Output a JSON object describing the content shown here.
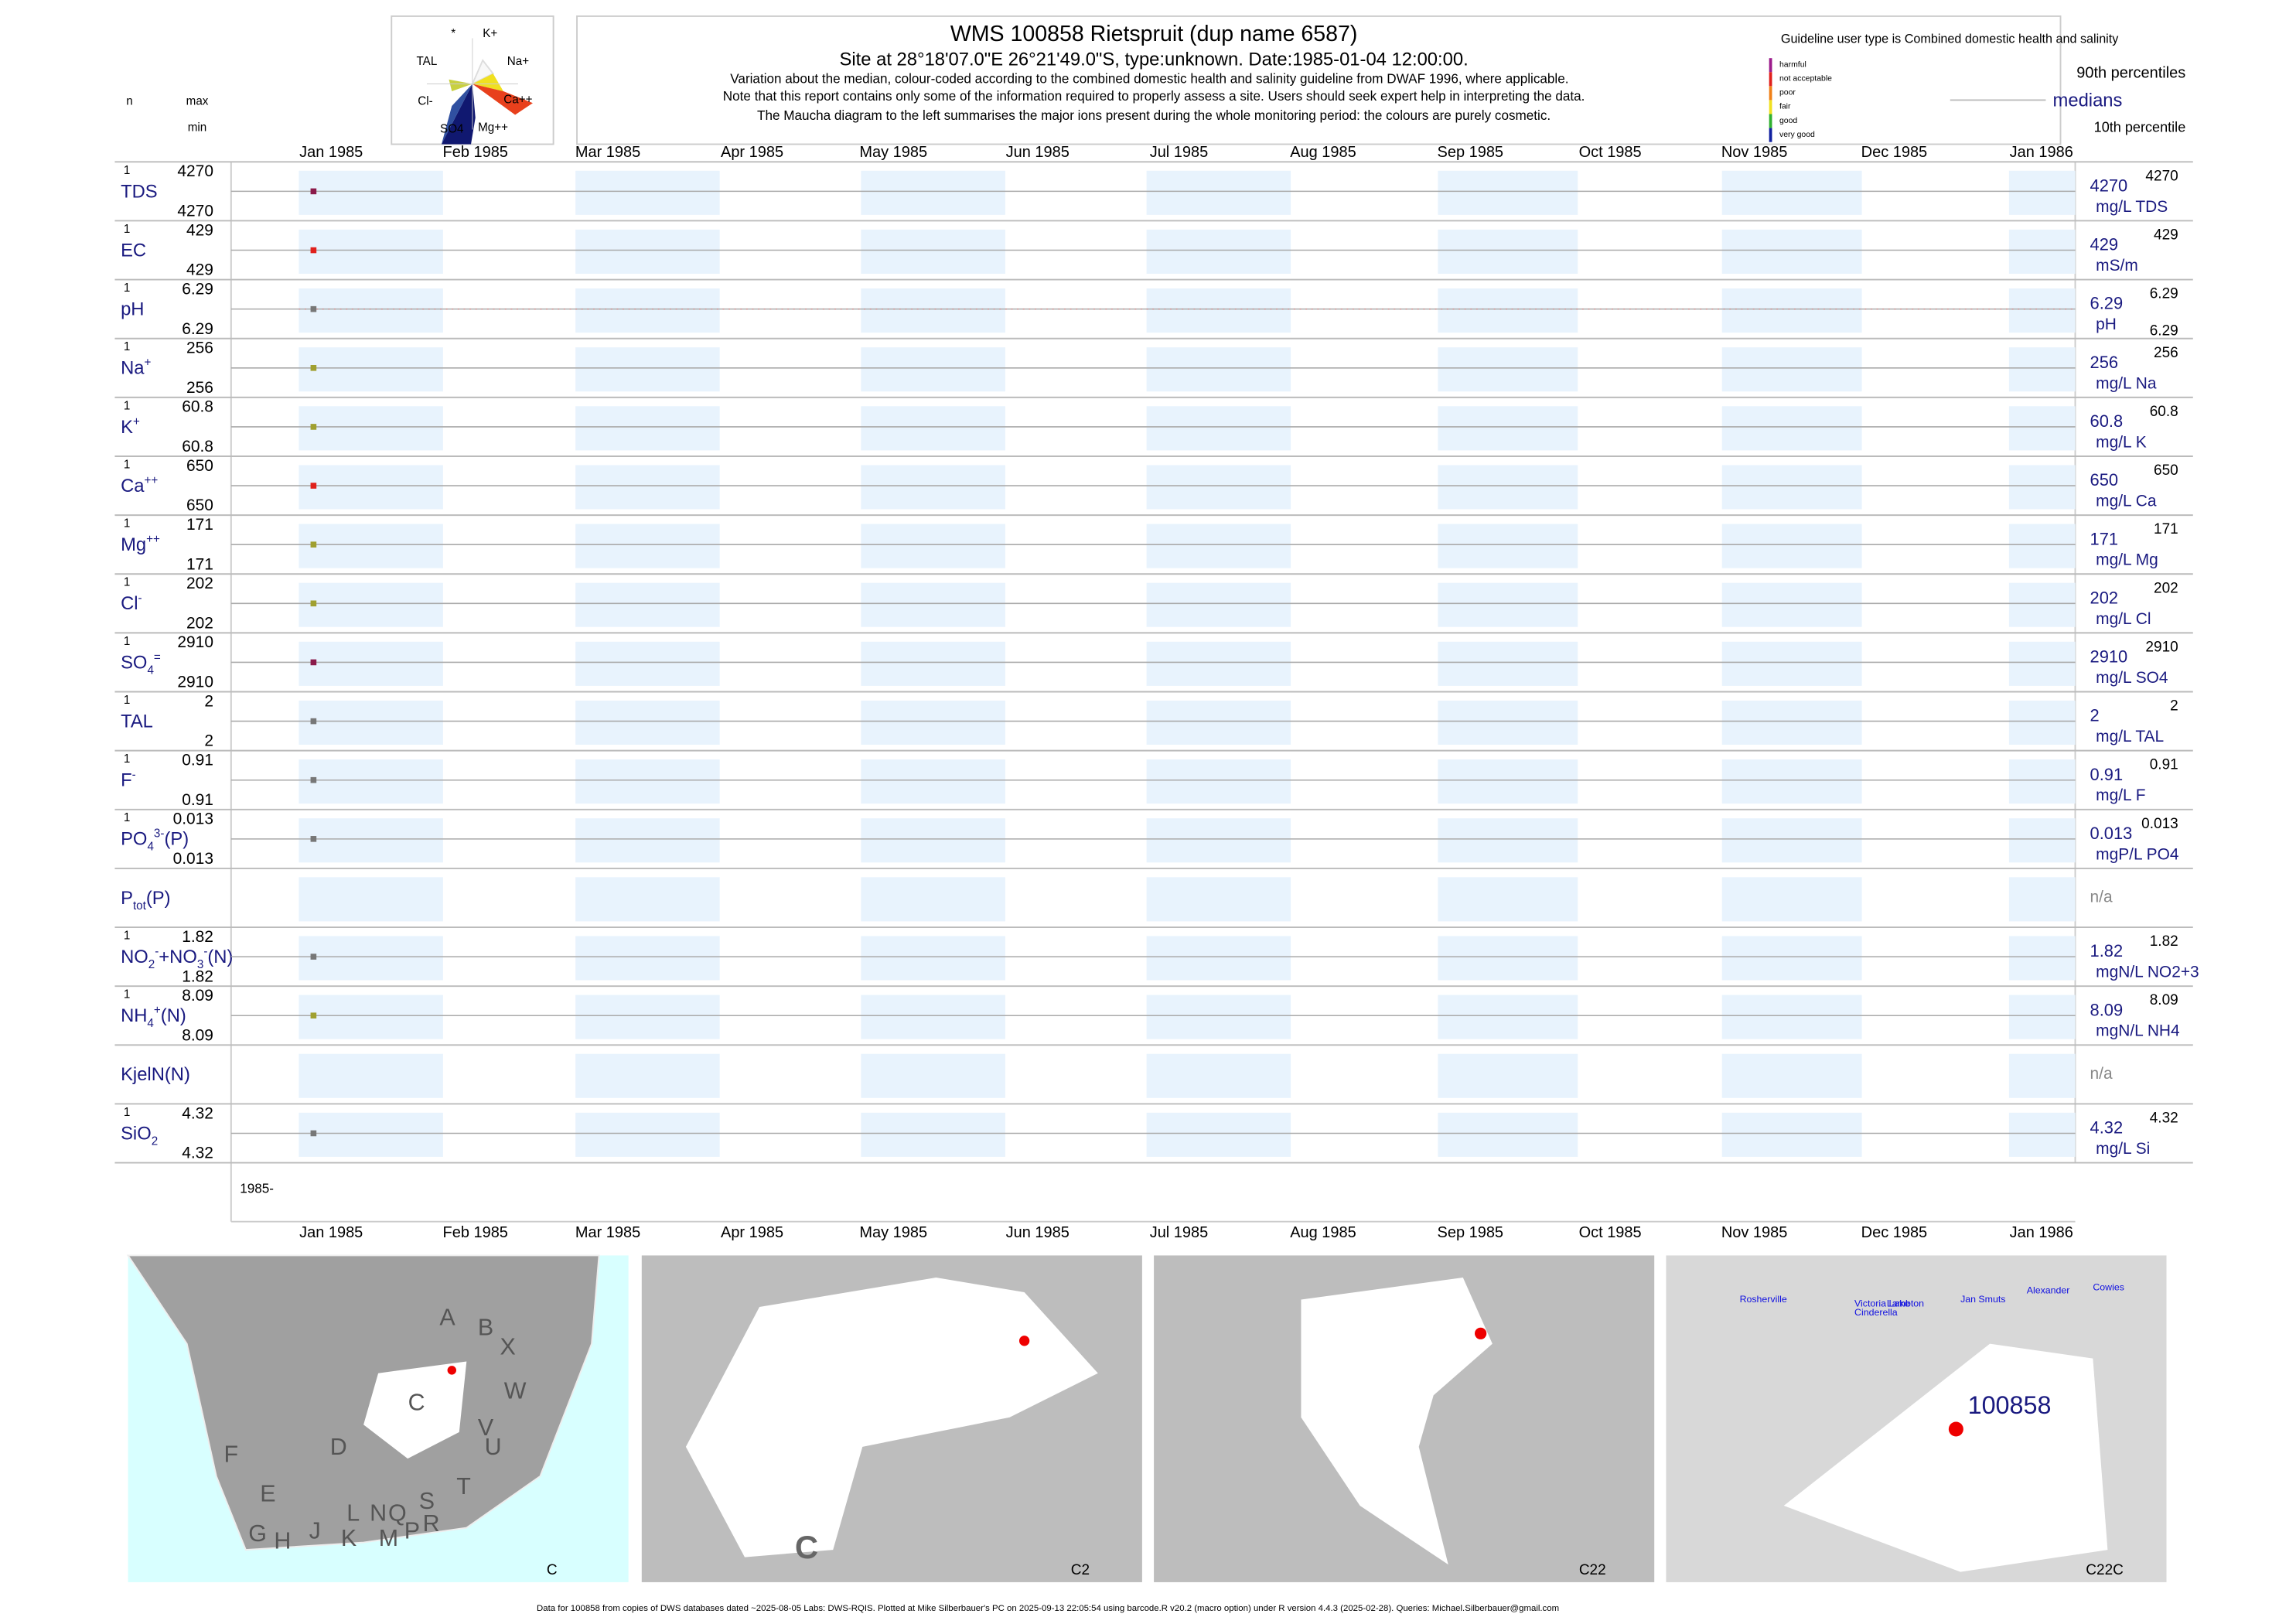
{
  "header": {
    "title": "WMS 100858  Rietspruit (dup name 6587)",
    "subtitle": "Site at 28°18'07.0\"E 26°21'49.0\"S, type:unknown. Date:1985-01-04 12:00:00.",
    "notes": [
      "Variation about the median,  colour-coded according to the combined domestic health and salinity guideline from DWAF 1996, where applicable.",
      "Note that this report contains only some of the information required to properly assess a site. Users should seek expert help in interpreting the data.",
      "The Maucha diagram to the left summarises the major ions present during the whole monitoring period: the colours are purely cosmetic."
    ]
  },
  "maucha": {
    "labels": [
      "*",
      "K+",
      "TAL",
      "Na+",
      "Cl-",
      "Ca++",
      "SO4",
      "Mg++"
    ]
  },
  "legend": {
    "title": "Guideline user type is Combined domestic health and salinity",
    "classes": [
      {
        "name": "harmful",
        "color": "#9c1c8c"
      },
      {
        "name": "not acceptable",
        "color": "#e0201c"
      },
      {
        "name": "poor",
        "color": "#f08018"
      },
      {
        "name": "fair",
        "color": "#f0e020"
      },
      {
        "name": "good",
        "color": "#30b030"
      },
      {
        "name": "very good",
        "color": "#1020a0"
      }
    ],
    "upper": "90th percentiles",
    "middle": "medians",
    "lower": "10th percentile"
  },
  "columns": {
    "n": "n",
    "max": "max",
    "min": "min"
  },
  "months": [
    "Jan 1985",
    "Feb 1985",
    "Mar 1985",
    "Apr 1985",
    "May 1985",
    "Jun 1985",
    "Jul 1985",
    "Aug 1985",
    "Sep 1985",
    "Oct 1985",
    "Nov 1985",
    "Dec 1985",
    "Jan 1986"
  ],
  "year_label": "1985-",
  "rows": [
    {
      "label": [
        {
          "t": "TDS"
        }
      ],
      "n": 1,
      "max": 4270,
      "min": 4270,
      "median": 4270,
      "p90": 4270,
      "unit": "mg/L TDS",
      "color": "#8b1a4a"
    },
    {
      "label": [
        {
          "t": "EC"
        }
      ],
      "n": 1,
      "max": 429,
      "min": 429,
      "median": 429,
      "p90": 429,
      "unit": "mS/m",
      "color": "#e0201c"
    },
    {
      "label": [
        {
          "t": "pH"
        }
      ],
      "n": 1,
      "max": 6.29,
      "min": 6.29,
      "median": 6.29,
      "p90": 6.29,
      "p10": 6.29,
      "unit": "pH",
      "color": "#777777"
    },
    {
      "label": [
        {
          "t": "Na"
        },
        {
          "t": "+",
          "pos": "sup"
        }
      ],
      "n": 1,
      "max": 256,
      "min": 256,
      "median": 256,
      "p90": 256,
      "unit": "mg/L Na",
      "color": "#a0a030"
    },
    {
      "label": [
        {
          "t": "K"
        },
        {
          "t": "+",
          "pos": "sup"
        }
      ],
      "n": 1,
      "max": 60.8,
      "min": 60.8,
      "median": 60.8,
      "p90": 60.8,
      "unit": "mg/L K",
      "color": "#a0a030"
    },
    {
      "label": [
        {
          "t": "Ca"
        },
        {
          "t": "++",
          "pos": "sup"
        }
      ],
      "n": 1,
      "max": 650,
      "min": 650,
      "median": 650,
      "p90": 650,
      "unit": "mg/L Ca",
      "color": "#e0201c"
    },
    {
      "label": [
        {
          "t": "Mg"
        },
        {
          "t": "++",
          "pos": "sup"
        }
      ],
      "n": 1,
      "max": 171,
      "min": 171,
      "median": 171,
      "p90": 171,
      "unit": "mg/L Mg",
      "color": "#a0a030"
    },
    {
      "label": [
        {
          "t": "Cl"
        },
        {
          "t": "-",
          "pos": "sup"
        }
      ],
      "n": 1,
      "max": 202,
      "min": 202,
      "median": 202,
      "p90": 202,
      "unit": "mg/L Cl",
      "color": "#a0a030"
    },
    {
      "label": [
        {
          "t": "SO"
        },
        {
          "t": "4",
          "pos": "sub"
        },
        {
          "t": "=",
          "pos": "sup"
        }
      ],
      "n": 1,
      "max": 2910,
      "min": 2910,
      "median": 2910,
      "p90": 2910,
      "unit": "mg/L SO4",
      "color": "#8b1a4a"
    },
    {
      "label": [
        {
          "t": "TAL"
        }
      ],
      "n": 1,
      "max": 2,
      "min": 2,
      "median": 2,
      "p90": 2,
      "unit": "mg/L TAL",
      "color": "#777777"
    },
    {
      "label": [
        {
          "t": "F"
        },
        {
          "t": "-",
          "pos": "sup"
        }
      ],
      "n": 1,
      "max": 0.91,
      "min": 0.91,
      "median": 0.91,
      "p90": 0.91,
      "unit": "mg/L F",
      "color": "#777777"
    },
    {
      "label": [
        {
          "t": "PO"
        },
        {
          "t": "4",
          "pos": "sub"
        },
        {
          "t": "3-",
          "pos": "sup"
        },
        {
          "t": "(P)"
        }
      ],
      "n": 1,
      "max": 0.013,
      "min": 0.013,
      "median": 0.013,
      "p90": 0.013,
      "unit": "mgP/L PO4",
      "color": "#777777"
    },
    {
      "label": [
        {
          "t": "P"
        },
        {
          "t": "tot",
          "pos": "sub"
        },
        {
          "t": "(P)"
        }
      ],
      "status": "n/a"
    },
    {
      "label": [
        {
          "t": "NO"
        },
        {
          "t": "2",
          "pos": "sub"
        },
        {
          "t": "-",
          "pos": "sup"
        },
        {
          "t": "+NO"
        },
        {
          "t": "3",
          "pos": "sub"
        },
        {
          "t": "-",
          "pos": "sup"
        },
        {
          "t": "(N)"
        }
      ],
      "n": 1,
      "max": 1.82,
      "min": 1.82,
      "median": 1.82,
      "p90": 1.82,
      "unit": "mgN/L NO2+3",
      "color": "#777777"
    },
    {
      "label": [
        {
          "t": "NH"
        },
        {
          "t": "4",
          "pos": "sub"
        },
        {
          "t": "+",
          "pos": "sup"
        },
        {
          "t": "(N)"
        }
      ],
      "n": 1,
      "max": 8.09,
      "min": 8.09,
      "median": 8.09,
      "p90": 8.09,
      "unit": "mgN/L NH4",
      "color": "#a0a030"
    },
    {
      "label": [
        {
          "t": "KjelN(N)"
        }
      ],
      "status": "n/a"
    },
    {
      "label": [
        {
          "t": "SiO"
        },
        {
          "t": "2",
          "pos": "sub"
        }
      ],
      "n": 1,
      "max": 4.32,
      "min": 4.32,
      "median": 4.32,
      "p90": 4.32,
      "unit": "mg/L Si",
      "color": "#777777"
    }
  ],
  "maps": [
    {
      "corner": "C",
      "labels": [
        "A",
        "B",
        "X",
        "W",
        "C",
        "D",
        "V",
        "U",
        "T",
        "F",
        "E",
        "G",
        "H",
        "J",
        "K",
        "L",
        "N",
        "M",
        "Q",
        "P",
        "S",
        "R"
      ]
    },
    {
      "corner": "C2",
      "labels": [
        "C"
      ]
    },
    {
      "corner": "C22",
      "labels": []
    },
    {
      "corner": "C22C",
      "labels": [
        "100858",
        "Rosherville",
        "Victoria Lake",
        "Cinderella",
        "Lambton",
        "Jan Smuts",
        "Alexander",
        "Cowies"
      ]
    }
  ],
  "footer": "Data for 100858 from copies of DWS databases dated ~2025-08-05 Labs: DWS-RQIS. Plotted at Mike Silberbauer's PC on 2025-09-13 22:05:54 using barcode.R v20.2 (macro option) under R version 4.4.3 (2025-02-28). Queries: Michael.Silberbauer@gmail.com"
}
